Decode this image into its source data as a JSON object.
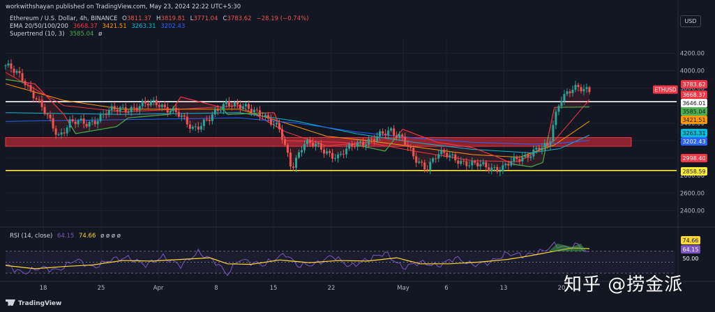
{
  "header": {
    "publisher": "workwithshayan published on TradingView.com, May 23, 2024 22:22 UTC+5:30",
    "symbol": "Ethereum / U.S. Dollar, 4h, BINANCE",
    "ohlc": [
      {
        "k": "O",
        "v": "3811.37"
      },
      {
        "k": "H",
        "v": "3819.81"
      },
      {
        "k": "L",
        "v": "3771.04"
      },
      {
        "k": "C",
        "v": "3783.62"
      },
      {
        "k": "",
        "v": "−28.19 (−0.74%)"
      }
    ],
    "ema_label": "EMA 20/50/100/200",
    "ema_values": [
      "3668.37",
      "3421.51",
      "3263.31",
      "3202.43"
    ],
    "supertrend_label": "Supertrend (10, 3)",
    "supertrend_value": "3585.04",
    "supertrend_extra": "ø",
    "rsi_label": "RSI (14, close)",
    "rsi_value": "64.15",
    "rsi_ma_value": "74.66",
    "rsi_extra": "ø ø ø ø"
  },
  "currency_button": "USD",
  "watermark": "知乎 @捞金派",
  "footer_logo": "TradingView",
  "colors": {
    "background": "#131722",
    "up": "#26a69a",
    "down": "#ef5350",
    "ema20": "#f23645",
    "ema50": "#ff9800",
    "ema100": "#00bcd4",
    "ema200": "#2962ff",
    "supertrend_up": "#4caf50",
    "supertrend_down": "#f23645",
    "zone": "#b22833",
    "resistance_line": "#ffffff",
    "support_line": "#ffeb3b",
    "rsi": "#7e57c2",
    "rsi_ma": "#fdd835"
  },
  "chart_data": [
    {
      "type": "candlestick",
      "title": "Ethereum / U.S. Dollar, 4h, BINANCE",
      "x_ticks": [
        "18",
        "25",
        "Apr",
        "8",
        "15",
        "22",
        "May",
        "6",
        "13",
        "20"
      ],
      "y_ticks": [
        2400,
        2600,
        2800,
        3000,
        3200,
        3400,
        3600,
        3800,
        4000,
        4200
      ],
      "ylim": [
        2260,
        4330
      ],
      "last_price": 3783.62,
      "price_labels": [
        {
          "text": "ETHUSD",
          "value": 3783.62,
          "color": "#f23645"
        },
        {
          "text": "3783.62",
          "value": 3783.62,
          "color": "#f23645"
        },
        {
          "text": "3668.37",
          "value": 3668.37,
          "color": "#f23645"
        },
        {
          "text": "3646.01",
          "value": 3646.01,
          "color": "#ffffff"
        },
        {
          "text": "3585.04",
          "value": 3585.04,
          "color": "#4caf50"
        },
        {
          "text": "3421.51",
          "value": 3421.51,
          "color": "#ff9800"
        },
        {
          "text": "3263.31",
          "value": 3263.31,
          "color": "#00bcd4"
        },
        {
          "text": "3202.43",
          "value": 3202.43,
          "color": "#2962ff"
        },
        {
          "text": "2998.40",
          "value": 2998.4,
          "color": "#f23645"
        },
        {
          "text": "2858.59",
          "value": 2858.59,
          "color": "#ffeb3b"
        }
      ],
      "horizontal_lines": [
        {
          "name": "resistance",
          "value": 3646.01,
          "color": "#ffffff"
        },
        {
          "name": "support",
          "value": 2858.59,
          "color": "#ffeb3b"
        }
      ],
      "zone": {
        "from": 3135,
        "to": 3235
      },
      "price_path": [
        [
          0,
          4060
        ],
        [
          3,
          3900
        ],
        [
          5,
          3720
        ],
        [
          7,
          3480
        ],
        [
          9,
          3250
        ],
        [
          11,
          3420
        ],
        [
          14,
          3380
        ],
        [
          17,
          3520
        ],
        [
          20,
          3560
        ],
        [
          23,
          3590
        ],
        [
          26,
          3640
        ],
        [
          29,
          3520
        ],
        [
          32,
          3350
        ],
        [
          35,
          3440
        ],
        [
          38,
          3660
        ],
        [
          41,
          3560
        ],
        [
          44,
          3520
        ],
        [
          47,
          3300
        ],
        [
          49,
          2900
        ],
        [
          51,
          3170
        ],
        [
          54,
          3120
        ],
        [
          57,
          3000
        ],
        [
          60,
          3180
        ],
        [
          63,
          3200
        ],
        [
          66,
          3330
        ],
        [
          68,
          3230
        ],
        [
          70,
          2980
        ],
        [
          72,
          2900
        ],
        [
          74,
          3050
        ],
        [
          77,
          3000
        ],
        [
          80,
          2920
        ],
        [
          83,
          2900
        ],
        [
          85,
          2880
        ],
        [
          88,
          3000
        ],
        [
          91,
          3100
        ],
        [
          93,
          3120
        ],
        [
          94,
          3450
        ],
        [
          95,
          3700
        ],
        [
          97,
          3780
        ],
        [
          100,
          3783.62
        ]
      ],
      "supertrend_path": [
        [
          0,
          3900
        ],
        [
          5,
          3850
        ],
        [
          10,
          3500
        ],
        [
          12,
          3280
        ],
        [
          19,
          3360
        ],
        [
          21,
          3460
        ],
        [
          28,
          3500
        ],
        [
          30,
          3700
        ],
        [
          37,
          3580
        ],
        [
          38,
          3500
        ],
        [
          46,
          3520
        ],
        [
          48,
          3200
        ],
        [
          58,
          3180
        ],
        [
          65,
          3080
        ],
        [
          68,
          3330
        ],
        [
          74,
          3180
        ],
        [
          80,
          3120
        ],
        [
          84,
          3020
        ],
        [
          87,
          2930
        ],
        [
          90,
          2900
        ],
        [
          92,
          2950
        ],
        [
          94,
          3580
        ],
        [
          100,
          3585.04
        ]
      ],
      "ema_paths": [
        {
          "name": "EMA 20",
          "color": "#f23645",
          "points": [
            [
              0,
              3980
            ],
            [
              10,
              3600
            ],
            [
              20,
              3530
            ],
            [
              30,
              3560
            ],
            [
              40,
              3600
            ],
            [
              48,
              3300
            ],
            [
              55,
              3140
            ],
            [
              62,
              3180
            ],
            [
              70,
              3080
            ],
            [
              80,
              2970
            ],
            [
              88,
              2960
            ],
            [
              94,
              3200
            ],
            [
              100,
              3668.37
            ]
          ]
        },
        {
          "name": "EMA 50",
          "color": "#ff9800",
          "points": [
            [
              0,
              3850
            ],
            [
              10,
              3660
            ],
            [
              20,
              3560
            ],
            [
              30,
              3560
            ],
            [
              40,
              3560
            ],
            [
              48,
              3400
            ],
            [
              55,
              3250
            ],
            [
              62,
              3200
            ],
            [
              70,
              3130
            ],
            [
              80,
              3040
            ],
            [
              88,
              3010
            ],
            [
              94,
              3150
            ],
            [
              100,
              3421.51
            ]
          ]
        },
        {
          "name": "EMA 100",
          "color": "#00bcd4",
          "points": [
            [
              0,
              3520
            ],
            [
              20,
              3500
            ],
            [
              40,
              3520
            ],
            [
              50,
              3420
            ],
            [
              60,
              3280
            ],
            [
              70,
              3180
            ],
            [
              80,
              3100
            ],
            [
              90,
              3060
            ],
            [
              95,
              3110
            ],
            [
              100,
              3263.31
            ]
          ]
        },
        {
          "name": "EMA 200",
          "color": "#2962ff",
          "points": [
            [
              0,
              3420
            ],
            [
              20,
              3440
            ],
            [
              40,
              3460
            ],
            [
              50,
              3400
            ],
            [
              60,
              3300
            ],
            [
              70,
              3230
            ],
            [
              80,
              3180
            ],
            [
              90,
              3160
            ],
            [
              95,
              3170
            ],
            [
              100,
              3202.43
            ]
          ]
        }
      ]
    },
    {
      "type": "line",
      "title": "RSI (14, close)",
      "y_ticks": [
        50.0
      ],
      "ylim": [
        20,
        90
      ],
      "bands": [
        70,
        50,
        30
      ],
      "rsi_path": [
        [
          0,
          45
        ],
        [
          3,
          30
        ],
        [
          6,
          40
        ],
        [
          9,
          35
        ],
        [
          12,
          55
        ],
        [
          15,
          40
        ],
        [
          18,
          55
        ],
        [
          21,
          58
        ],
        [
          24,
          45
        ],
        [
          27,
          60
        ],
        [
          30,
          44
        ],
        [
          33,
          68
        ],
        [
          36,
          50
        ],
        [
          38,
          28
        ],
        [
          40,
          55
        ],
        [
          44,
          45
        ],
        [
          48,
          65
        ],
        [
          50,
          44
        ],
        [
          53,
          46
        ],
        [
          56,
          62
        ],
        [
          59,
          42
        ],
        [
          62,
          55
        ],
        [
          65,
          67
        ],
        [
          68,
          40
        ],
        [
          71,
          50
        ],
        [
          74,
          43
        ],
        [
          77,
          58
        ],
        [
          80,
          45
        ],
        [
          83,
          50
        ],
        [
          86,
          66
        ],
        [
          89,
          62
        ],
        [
          92,
          70
        ],
        [
          94,
          82
        ],
        [
          96,
          76
        ],
        [
          98,
          82
        ],
        [
          100,
          64.15
        ]
      ],
      "rsi_ma_path": [
        [
          0,
          44
        ],
        [
          5,
          38
        ],
        [
          10,
          42
        ],
        [
          15,
          45
        ],
        [
          20,
          53
        ],
        [
          25,
          52
        ],
        [
          30,
          55
        ],
        [
          35,
          58
        ],
        [
          38,
          47
        ],
        [
          42,
          46
        ],
        [
          47,
          54
        ],
        [
          52,
          49
        ],
        [
          57,
          53
        ],
        [
          62,
          52
        ],
        [
          67,
          58
        ],
        [
          71,
          47
        ],
        [
          76,
          47
        ],
        [
          81,
          50
        ],
        [
          86,
          55
        ],
        [
          90,
          62
        ],
        [
          94,
          70
        ],
        [
          97,
          76
        ],
        [
          100,
          74.66
        ]
      ],
      "value_labels": [
        {
          "text": "74.66",
          "value": 74.66,
          "color": "#fdd835"
        },
        {
          "text": "64.15",
          "value": 64.15,
          "color": "#7e57c2"
        },
        {
          "text": "50.00",
          "value": 50.0,
          "color": "#131722"
        }
      ]
    }
  ]
}
